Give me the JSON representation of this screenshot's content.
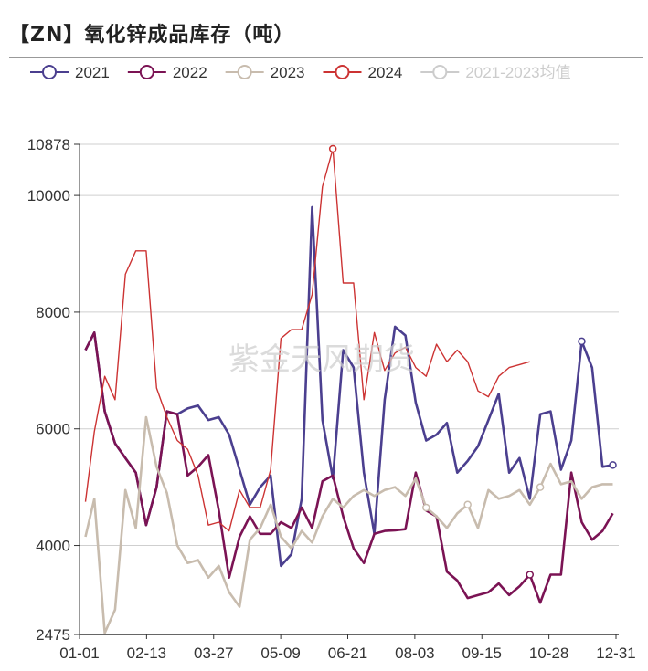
{
  "title": "【ZN】氧化锌成品库存（吨）",
  "watermark": "紫金天风期货",
  "chart_data": {
    "type": "line",
    "title": "【ZN】氧化锌成品库存（吨）",
    "xlabel": "",
    "ylabel": "",
    "x_ticks": [
      "01-01",
      "02-13",
      "03-27",
      "05-09",
      "06-21",
      "08-03",
      "09-15",
      "10-28",
      "12-31"
    ],
    "x_range_days": [
      1,
      365
    ],
    "y_ticks": [
      2475,
      4000,
      6000,
      8000,
      10000,
      10878
    ],
    "ylim": [
      2475,
      10878
    ],
    "grid": true,
    "legend_position": "top",
    "series": [
      {
        "name": "2021",
        "color": "#4b3f8f",
        "x": [
          5,
          11,
          18,
          25,
          32,
          39,
          46,
          53,
          60,
          67,
          74,
          81,
          88,
          95,
          102,
          109,
          116,
          123,
          130,
          137,
          144,
          151,
          158,
          165,
          172,
          179,
          186,
          193,
          200,
          207,
          214,
          221,
          228,
          235,
          242,
          249,
          256,
          263,
          270,
          277,
          284,
          291,
          298,
          305,
          312,
          319,
          326,
          333,
          340,
          347,
          354,
          361
        ],
        "values": [
          7350,
          7650,
          6300,
          5750,
          5500,
          5250,
          4350,
          5000,
          6300,
          6250,
          6350,
          6400,
          6150,
          6200,
          5900,
          5300,
          4700,
          5000,
          5200,
          3650,
          3850,
          4800,
          9800,
          6150,
          5150,
          7350,
          7050,
          5250,
          4200,
          6500,
          7750,
          7600,
          6450,
          5800,
          5900,
          6100,
          5250,
          5450,
          5700,
          6150,
          6600,
          5250,
          5500,
          4800,
          6250,
          6300,
          5300,
          5800,
          7500,
          7050,
          5350,
          5380
        ]
      },
      {
        "name": "2022",
        "color": "#7b1354",
        "x": [
          5,
          11,
          18,
          25,
          32,
          39,
          46,
          53,
          60,
          67,
          74,
          81,
          88,
          95,
          102,
          109,
          116,
          123,
          130,
          137,
          144,
          151,
          158,
          165,
          172,
          179,
          186,
          193,
          200,
          207,
          214,
          221,
          228,
          235,
          242,
          249,
          256,
          263,
          270,
          277,
          284,
          291,
          298,
          305,
          312,
          319,
          326,
          333,
          340,
          347,
          354,
          361
        ],
        "values": [
          7350,
          7650,
          6300,
          5750,
          5500,
          5250,
          4350,
          5000,
          6300,
          6250,
          5200,
          5350,
          5550,
          4600,
          3450,
          4150,
          4500,
          4200,
          4200,
          4400,
          4300,
          4650,
          4300,
          5100,
          5200,
          4500,
          3950,
          3700,
          4200,
          4250,
          4260,
          4280,
          5250,
          4600,
          4500,
          3550,
          3400,
          3100,
          3150,
          3200,
          3350,
          3150,
          3300,
          3500,
          3020,
          3500,
          3500,
          5250,
          4400,
          4100,
          4250,
          4550
        ]
      },
      {
        "name": "2023",
        "color": "#c8bcae",
        "x": [
          5,
          11,
          18,
          25,
          32,
          39,
          46,
          53,
          60,
          67,
          74,
          81,
          88,
          95,
          102,
          109,
          116,
          123,
          130,
          137,
          144,
          151,
          158,
          165,
          172,
          179,
          186,
          193,
          200,
          207,
          214,
          221,
          228,
          235,
          242,
          249,
          256,
          263,
          270,
          277,
          284,
          291,
          298,
          305,
          312,
          319,
          326,
          333,
          340,
          347,
          354,
          361
        ],
        "values": [
          4150,
          4800,
          2500,
          2900,
          4950,
          4300,
          6200,
          5350,
          4900,
          4000,
          3700,
          3750,
          3450,
          3650,
          3200,
          2950,
          4100,
          4300,
          4700,
          4150,
          3950,
          4250,
          4050,
          4500,
          4800,
          4650,
          4850,
          4950,
          4850,
          4950,
          5000,
          4850,
          5150,
          4650,
          4500,
          4300,
          4550,
          4700,
          4300,
          4950,
          4800,
          4850,
          4950,
          4700,
          5000,
          5400,
          5050,
          5100,
          4800,
          5000,
          5050,
          5050
        ]
      },
      {
        "name": "2024",
        "color": "#cc3333",
        "x": [
          5,
          11,
          18,
          25,
          32,
          39,
          46,
          53,
          60,
          67,
          74,
          81,
          88,
          95,
          102,
          109,
          116,
          123,
          130,
          137,
          144,
          151,
          158,
          165,
          172,
          179,
          186,
          193,
          200,
          207,
          214,
          221,
          228,
          235,
          242,
          249,
          256,
          263,
          270,
          277,
          284,
          291,
          298,
          305
        ],
        "values": [
          4750,
          5950,
          6900,
          6500,
          8650,
          9050,
          9050,
          6700,
          6200,
          5800,
          5650,
          5200,
          4350,
          4400,
          4250,
          4950,
          4650,
          4650,
          5300,
          7550,
          7700,
          7700,
          8300,
          10150,
          10800,
          8500,
          8500,
          6500,
          7650,
          7000,
          7300,
          7400,
          7050,
          6900,
          7450,
          7150,
          7350,
          7150,
          6650,
          6550,
          6900,
          7050,
          7100,
          7150
        ]
      },
      {
        "name": "2021-2023均值",
        "color": "#cccccc",
        "values": []
      }
    ]
  }
}
